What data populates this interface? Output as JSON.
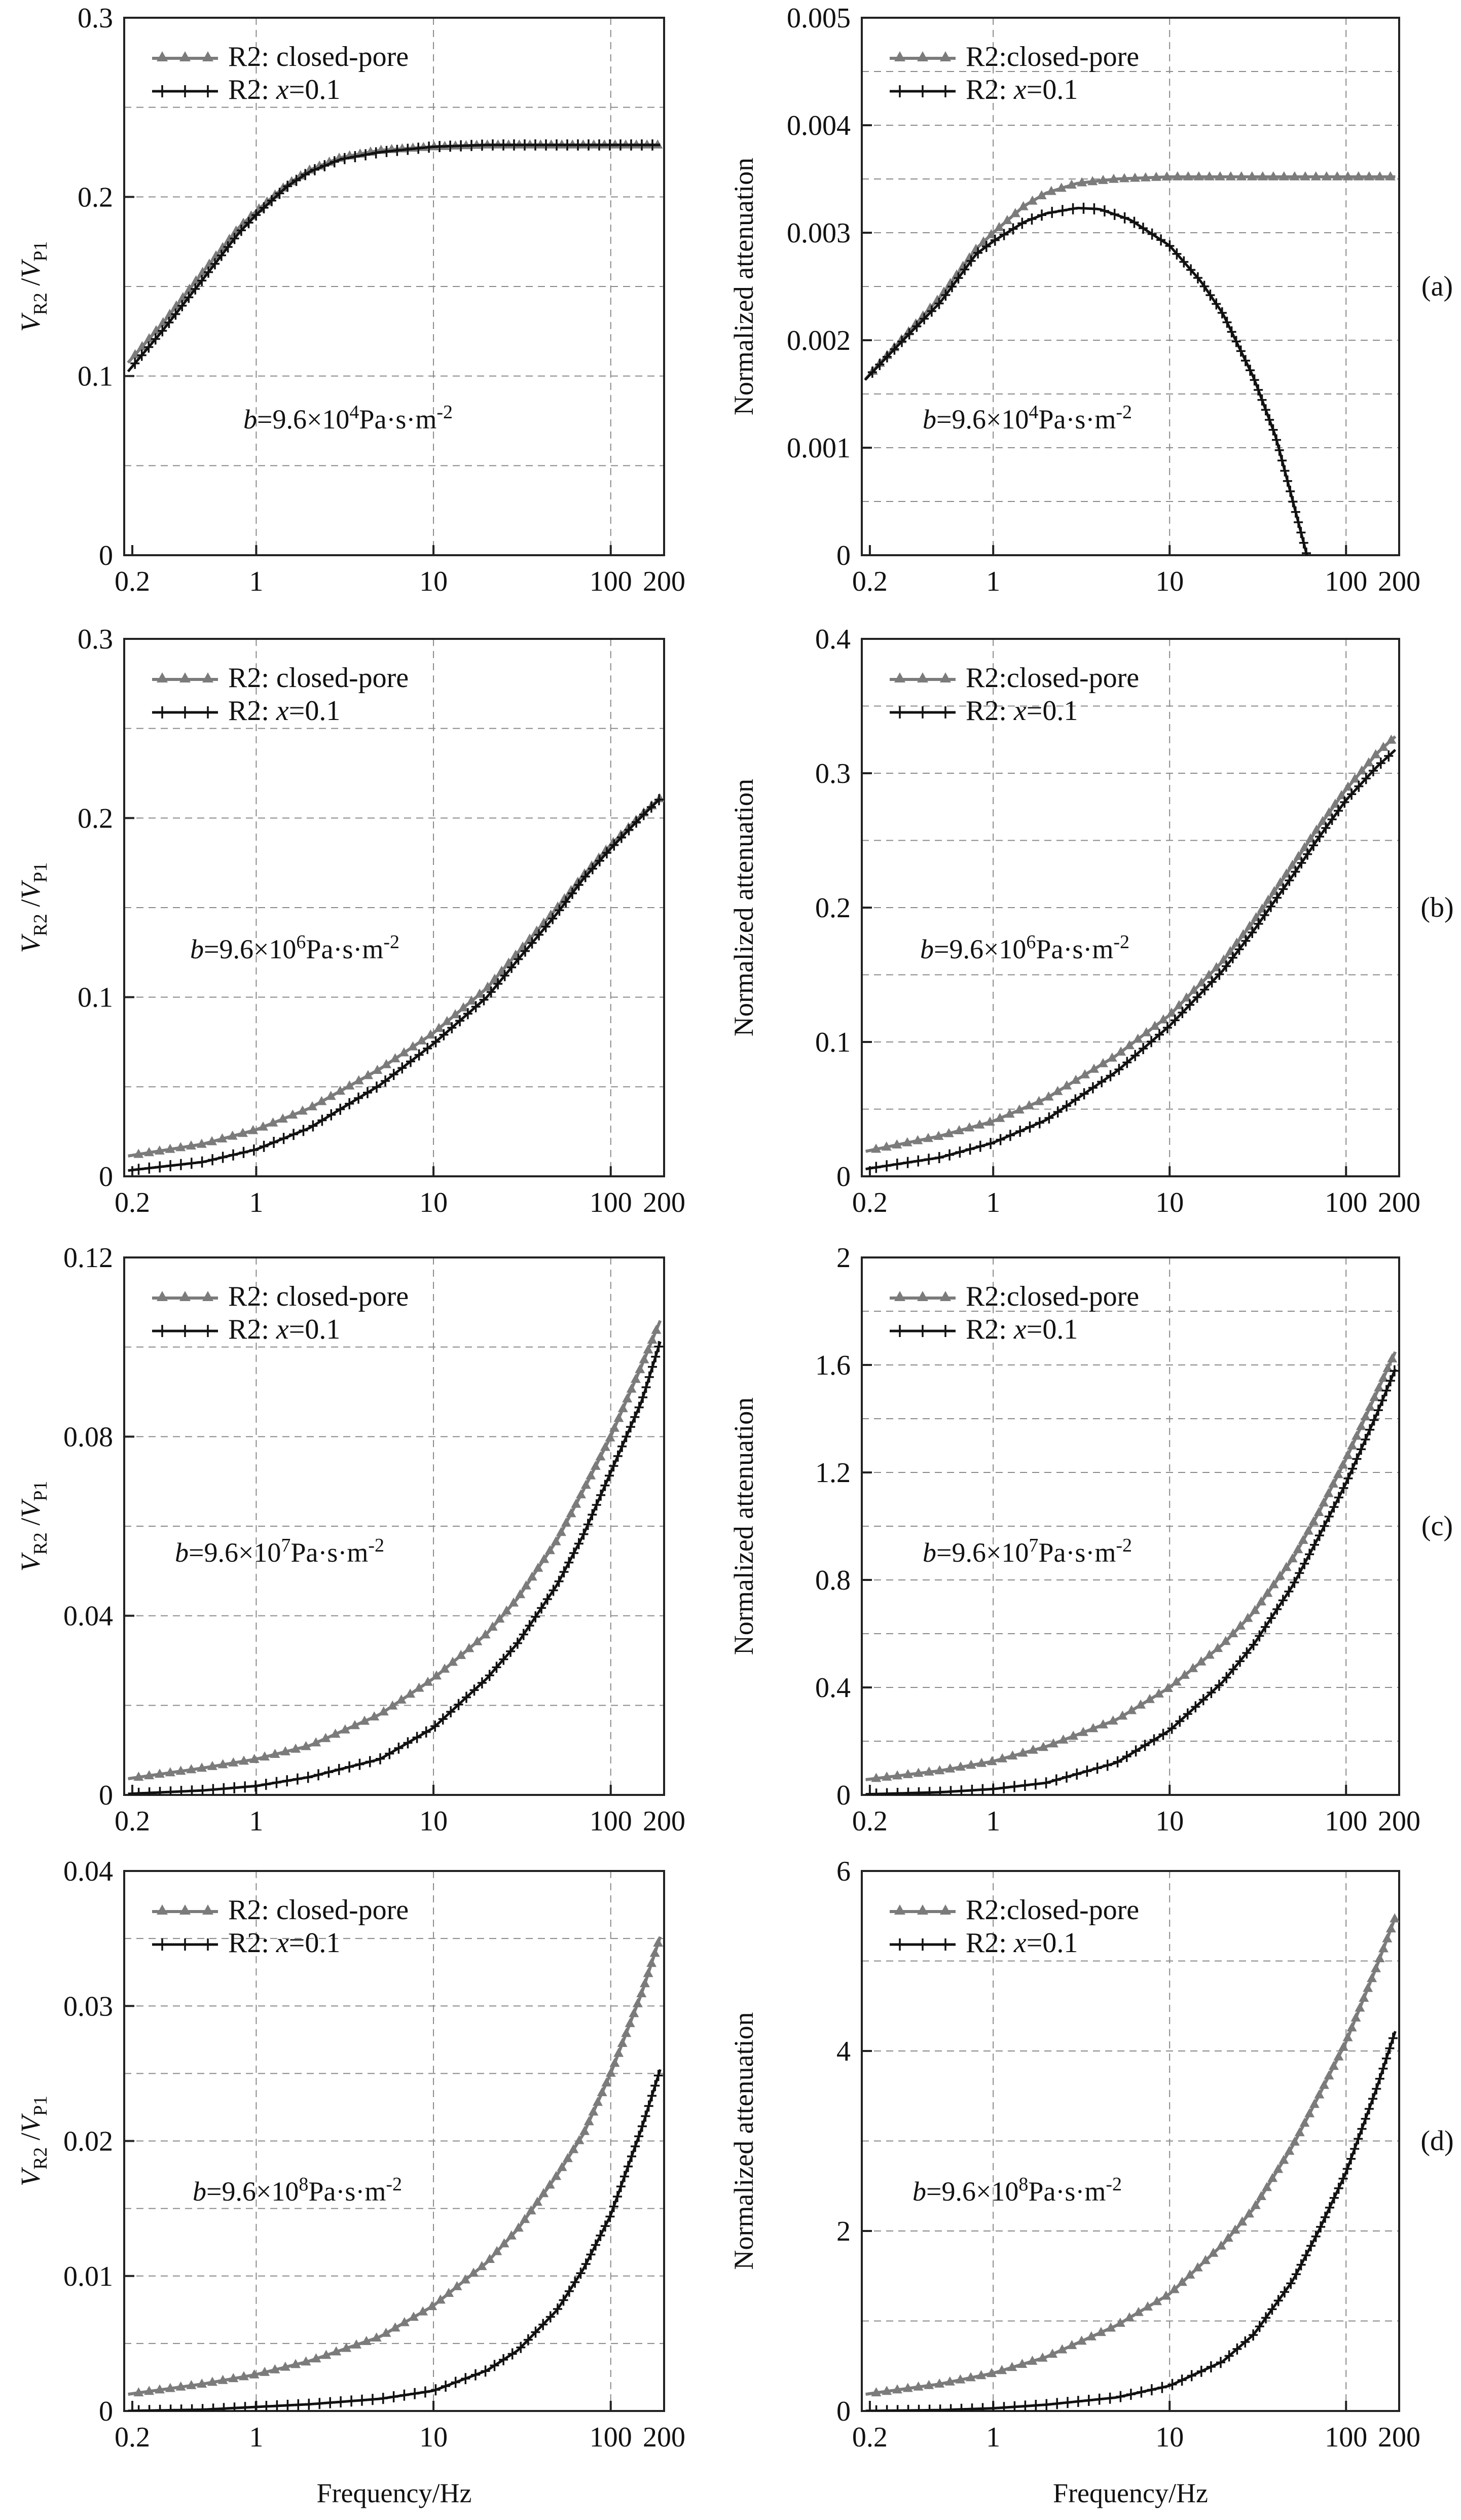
{
  "xlabel": "Frequency/Hz",
  "legend_labels": {
    "closed_left": "R2: closed-pore",
    "closed_right": "R2:closed-pore",
    "open": "R2: x=0.1"
  },
  "legend_parts": {
    "open_prefix": "R2: ",
    "open_var": "x",
    "open_suffix": "=0.1"
  },
  "ylabel_left": {
    "v": "V",
    "r2": "R2",
    "sep": " /",
    "p1": "P1"
  },
  "ylabel_right": "Normalized attenuation",
  "panel_tags": [
    "(a)",
    "(b)",
    "(c)",
    "(d)"
  ],
  "colors": {
    "closed": "#7b7b7b",
    "open": "#111111",
    "grid": "#8a8a8a"
  },
  "chart_data": [
    {
      "type": "line",
      "panel": "(a)",
      "quantity": "velocity ratio",
      "annotation": {
        "prefix": "b",
        "middle": "=9.6×10",
        "exp": "4",
        "suffix": "Pa·s·m",
        "exp2": "-2"
      },
      "x_scale": "log",
      "xlim": [
        0.18,
        200
      ],
      "xticks": [
        0.2,
        1,
        10,
        100,
        200
      ],
      "xtick_labels": [
        "0.2",
        "1",
        "10",
        "100",
        "200"
      ],
      "ylim": [
        0,
        0.3
      ],
      "yticks": [
        0,
        0.1,
        0.2,
        0.3
      ],
      "ytick_labels": [
        "0",
        "0.1",
        "0.2",
        "0.3"
      ],
      "y_gridlines": [
        0.05,
        0.1,
        0.15,
        0.2,
        0.25
      ],
      "series": [
        {
          "name": "R2: closed-pore",
          "x": [
            0.18,
            0.3,
            0.5,
            0.8,
            1,
            1.5,
            2,
            3,
            5,
            10,
            20,
            50,
            100,
            200
          ],
          "y": [
            0.105,
            0.13,
            0.158,
            0.183,
            0.192,
            0.207,
            0.215,
            0.222,
            0.226,
            0.228,
            0.229,
            0.229,
            0.229,
            0.229
          ]
        },
        {
          "name": "R2: x=0.1",
          "x": [
            0.18,
            0.3,
            0.5,
            0.8,
            1,
            1.5,
            2,
            3,
            5,
            10,
            20,
            50,
            100,
            200
          ],
          "y": [
            0.1,
            0.126,
            0.154,
            0.18,
            0.19,
            0.206,
            0.214,
            0.221,
            0.225,
            0.228,
            0.229,
            0.229,
            0.229,
            0.229
          ]
        }
      ]
    },
    {
      "type": "line",
      "panel": "(a)",
      "quantity": "normalized attenuation",
      "annotation": {
        "prefix": "b",
        "middle": "=9.6×10",
        "exp": "4",
        "suffix": "Pa·s·m",
        "exp2": "-2"
      },
      "x_scale": "log",
      "xlim": [
        0.18,
        200
      ],
      "xticks": [
        0.2,
        1,
        10,
        100,
        200
      ],
      "xtick_labels": [
        "0.2",
        "1",
        "10",
        "100",
        "200"
      ],
      "ylim": [
        0,
        0.005
      ],
      "yticks": [
        0,
        0.001,
        0.002,
        0.003,
        0.004,
        0.005
      ],
      "ytick_labels": [
        "0",
        "0.001",
        "0.002",
        "0.003",
        "0.004",
        "0.005"
      ],
      "y_gridlines": [
        0.0005,
        0.001,
        0.0015,
        0.002,
        0.0025,
        0.003,
        0.0035,
        0.004,
        0.0045
      ],
      "series": [
        {
          "name": "R2:closed-pore",
          "x": [
            0.18,
            0.3,
            0.5,
            0.8,
            1,
            1.5,
            2,
            3,
            5,
            10,
            20,
            50,
            100,
            200
          ],
          "y": [
            0.0016,
            0.002,
            0.0024,
            0.00285,
            0.003,
            0.00325,
            0.00337,
            0.00346,
            0.0035,
            0.00352,
            0.00352,
            0.00352,
            0.00352,
            0.00352
          ]
        },
        {
          "name": "R2: x=0.1",
          "x": [
            0.18,
            0.3,
            0.5,
            0.8,
            1,
            1.5,
            2,
            3,
            4,
            6,
            10,
            15,
            20,
            30,
            40,
            50,
            60
          ],
          "y": [
            0.0016,
            0.00198,
            0.00235,
            0.0028,
            0.00292,
            0.0031,
            0.00318,
            0.00323,
            0.00322,
            0.00312,
            0.00288,
            0.00255,
            0.00225,
            0.00165,
            0.0011,
            0.0005,
            0
          ]
        }
      ]
    },
    {
      "type": "line",
      "panel": "(b)",
      "quantity": "velocity ratio",
      "annotation": {
        "prefix": "b",
        "middle": "=9.6×10",
        "exp": "6",
        "suffix": "Pa·s·m",
        "exp2": "-2"
      },
      "x_scale": "log",
      "xlim": [
        0.18,
        200
      ],
      "xticks": [
        0.2,
        1,
        10,
        100,
        200
      ],
      "xtick_labels": [
        "0.2",
        "1",
        "10",
        "100",
        "200"
      ],
      "ylim": [
        0,
        0.3
      ],
      "yticks": [
        0,
        0.1,
        0.2,
        0.3
      ],
      "ytick_labels": [
        "0",
        "0.1",
        "0.2",
        "0.3"
      ],
      "y_gridlines": [
        0.05,
        0.1,
        0.15,
        0.2,
        0.25
      ],
      "series": [
        {
          "name": "R2: closed-pore",
          "x": [
            0.18,
            0.5,
            1,
            2,
            5,
            10,
            20,
            30,
            50,
            70,
            100,
            150,
            200
          ],
          "y": [
            0.011,
            0.018,
            0.026,
            0.038,
            0.06,
            0.08,
            0.105,
            0.125,
            0.15,
            0.168,
            0.185,
            0.202,
            0.213
          ]
        },
        {
          "name": "R2: x=0.1",
          "x": [
            0.18,
            0.5,
            1,
            2,
            5,
            10,
            20,
            30,
            50,
            70,
            100,
            150,
            200
          ],
          "y": [
            0.003,
            0.008,
            0.015,
            0.027,
            0.051,
            0.074,
            0.1,
            0.121,
            0.147,
            0.166,
            0.183,
            0.201,
            0.213
          ]
        }
      ]
    },
    {
      "type": "line",
      "panel": "(b)",
      "quantity": "normalized attenuation",
      "annotation": {
        "prefix": "b",
        "middle": "=9.6×10",
        "exp": "6",
        "suffix": "Pa·s·m",
        "exp2": "-2"
      },
      "x_scale": "log",
      "xlim": [
        0.18,
        200
      ],
      "xticks": [
        0.2,
        1,
        10,
        100,
        200
      ],
      "xtick_labels": [
        "0.2",
        "1",
        "10",
        "100",
        "200"
      ],
      "ylim": [
        0,
        0.4
      ],
      "yticks": [
        0,
        0.1,
        0.2,
        0.3,
        0.4
      ],
      "ytick_labels": [
        "0",
        "0.1",
        "0.2",
        "0.3",
        "0.4"
      ],
      "y_gridlines": [
        0.05,
        0.1,
        0.15,
        0.2,
        0.25,
        0.3,
        0.35
      ],
      "series": [
        {
          "name": "R2:closed-pore",
          "x": [
            0.18,
            0.5,
            1,
            2,
            5,
            10,
            20,
            30,
            50,
            70,
            100,
            150,
            200
          ],
          "y": [
            0.018,
            0.03,
            0.041,
            0.058,
            0.09,
            0.12,
            0.16,
            0.19,
            0.232,
            0.26,
            0.288,
            0.315,
            0.33
          ]
        },
        {
          "name": "R2: x=0.1",
          "x": [
            0.18,
            0.5,
            1,
            2,
            5,
            10,
            20,
            30,
            50,
            70,
            100,
            150,
            200
          ],
          "y": [
            0.005,
            0.014,
            0.025,
            0.042,
            0.078,
            0.112,
            0.153,
            0.183,
            0.224,
            0.252,
            0.28,
            0.305,
            0.32
          ]
        }
      ]
    },
    {
      "type": "line",
      "panel": "(c)",
      "quantity": "velocity ratio",
      "annotation": {
        "prefix": "b",
        "middle": "=9.6×10",
        "exp": "7",
        "suffix": "Pa·s·m",
        "exp2": "-2"
      },
      "x_scale": "log",
      "xlim": [
        0.18,
        200
      ],
      "xticks": [
        0.2,
        1,
        10,
        100,
        200
      ],
      "xtick_labels": [
        "0.2",
        "1",
        "10",
        "100",
        "200"
      ],
      "ylim": [
        0,
        0.12
      ],
      "yticks": [
        0,
        0.04,
        0.08,
        0.12
      ],
      "ytick_labels": [
        "0",
        "0.04",
        "0.08",
        "0.12"
      ],
      "y_gridlines": [
        0.02,
        0.04,
        0.06,
        0.08,
        0.1
      ],
      "series": [
        {
          "name": "R2: closed-pore",
          "x": [
            0.18,
            0.5,
            1,
            2,
            5,
            10,
            20,
            30,
            50,
            70,
            100,
            150,
            200
          ],
          "y": [
            0.0035,
            0.006,
            0.008,
            0.011,
            0.018,
            0.026,
            0.036,
            0.044,
            0.057,
            0.068,
            0.08,
            0.096,
            0.108
          ]
        },
        {
          "name": "R2: x=0.1",
          "x": [
            0.18,
            0.5,
            1,
            2,
            5,
            10,
            20,
            30,
            50,
            70,
            100,
            150,
            200
          ],
          "y": [
            0.0002,
            0.001,
            0.002,
            0.004,
            0.008,
            0.015,
            0.026,
            0.034,
            0.047,
            0.058,
            0.072,
            0.088,
            0.104
          ]
        }
      ]
    },
    {
      "type": "line",
      "panel": "(c)",
      "quantity": "normalized attenuation",
      "annotation": {
        "prefix": "b",
        "middle": "=9.6×10",
        "exp": "7",
        "suffix": "Pa·s·m",
        "exp2": "-2"
      },
      "x_scale": "log",
      "xlim": [
        0.18,
        200
      ],
      "xticks": [
        0.2,
        1,
        10,
        100,
        200
      ],
      "xtick_labels": [
        "0.2",
        "1",
        "10",
        "100",
        "200"
      ],
      "ylim": [
        0,
        2
      ],
      "yticks": [
        0,
        0.4,
        0.8,
        1.2,
        1.6,
        2
      ],
      "ytick_labels": [
        "0",
        "0.4",
        "0.8",
        "1.2",
        "1.6",
        "2"
      ],
      "y_gridlines": [
        0.2,
        0.4,
        0.6,
        0.8,
        1.0,
        1.2,
        1.4,
        1.6,
        1.8
      ],
      "series": [
        {
          "name": "R2:closed-pore",
          "x": [
            0.18,
            0.5,
            1,
            2,
            5,
            10,
            20,
            30,
            50,
            70,
            100,
            150,
            200
          ],
          "y": [
            0.055,
            0.09,
            0.125,
            0.18,
            0.28,
            0.4,
            0.56,
            0.68,
            0.88,
            1.05,
            1.25,
            1.5,
            1.68
          ]
        },
        {
          "name": "R2: x=0.1",
          "x": [
            0.18,
            0.5,
            1,
            2,
            5,
            10,
            20,
            30,
            50,
            70,
            100,
            150,
            200
          ],
          "y": [
            0.002,
            0.01,
            0.022,
            0.045,
            0.12,
            0.24,
            0.42,
            0.56,
            0.78,
            0.96,
            1.16,
            1.42,
            1.62
          ]
        }
      ]
    },
    {
      "type": "line",
      "panel": "(d)",
      "quantity": "velocity ratio",
      "annotation": {
        "prefix": "b",
        "middle": "=9.6×10",
        "exp": "8",
        "suffix": "Pa·s·m",
        "exp2": "-2"
      },
      "x_scale": "log",
      "xlim": [
        0.18,
        200
      ],
      "xticks": [
        0.2,
        1,
        10,
        100,
        200
      ],
      "xtick_labels": [
        "0.2",
        "1",
        "10",
        "100",
        "200"
      ],
      "ylim": [
        0,
        0.04
      ],
      "yticks": [
        0,
        0.01,
        0.02,
        0.03,
        0.04
      ],
      "ytick_labels": [
        "0",
        "0.01",
        "0.02",
        "0.03",
        "0.04"
      ],
      "y_gridlines": [
        0.005,
        0.01,
        0.015,
        0.02,
        0.025,
        0.03,
        0.035
      ],
      "series": [
        {
          "name": "R2: closed-pore",
          "x": [
            0.18,
            0.5,
            1,
            2,
            5,
            10,
            20,
            30,
            50,
            70,
            100,
            150,
            200
          ],
          "y": [
            0.0012,
            0.002,
            0.0027,
            0.0037,
            0.0055,
            0.0078,
            0.011,
            0.0135,
            0.0175,
            0.0205,
            0.025,
            0.031,
            0.036
          ]
        },
        {
          "name": "R2: x=0.1",
          "x": [
            0.18,
            0.5,
            1,
            2,
            5,
            10,
            20,
            30,
            50,
            70,
            100,
            150,
            200
          ],
          "y": [
            0.0,
            0.0001,
            0.0003,
            0.0005,
            0.0009,
            0.0015,
            0.003,
            0.0045,
            0.0075,
            0.0105,
            0.0145,
            0.021,
            0.0262
          ]
        }
      ]
    },
    {
      "type": "line",
      "panel": "(d)",
      "quantity": "normalized attenuation",
      "annotation": {
        "prefix": "b",
        "middle": "=9.6×10",
        "exp": "8",
        "suffix": "Pa·s·m",
        "exp2": "-2"
      },
      "x_scale": "log",
      "xlim": [
        0.18,
        200
      ],
      "xticks": [
        0.2,
        1,
        10,
        100,
        200
      ],
      "xtick_labels": [
        "0.2",
        "1",
        "10",
        "100",
        "200"
      ],
      "ylim": [
        0,
        6
      ],
      "yticks": [
        0,
        2,
        4,
        6
      ],
      "ytick_labels": [
        "0",
        "2",
        "4",
        "6"
      ],
      "y_gridlines": [
        1,
        2,
        3,
        4,
        5
      ],
      "series": [
        {
          "name": "R2:closed-pore",
          "x": [
            0.18,
            0.5,
            1,
            2,
            5,
            10,
            20,
            30,
            50,
            70,
            100,
            150,
            200
          ],
          "y": [
            0.18,
            0.3,
            0.42,
            0.6,
            0.95,
            1.3,
            1.85,
            2.25,
            2.95,
            3.5,
            4.1,
            4.95,
            5.6
          ]
        },
        {
          "name": "R2: x=0.1",
          "x": [
            0.18,
            0.5,
            1,
            2,
            5,
            10,
            20,
            30,
            50,
            70,
            100,
            150,
            200
          ],
          "y": [
            0.0,
            0.01,
            0.03,
            0.07,
            0.15,
            0.28,
            0.55,
            0.85,
            1.45,
            2.0,
            2.65,
            3.6,
            4.35
          ]
        }
      ]
    }
  ]
}
